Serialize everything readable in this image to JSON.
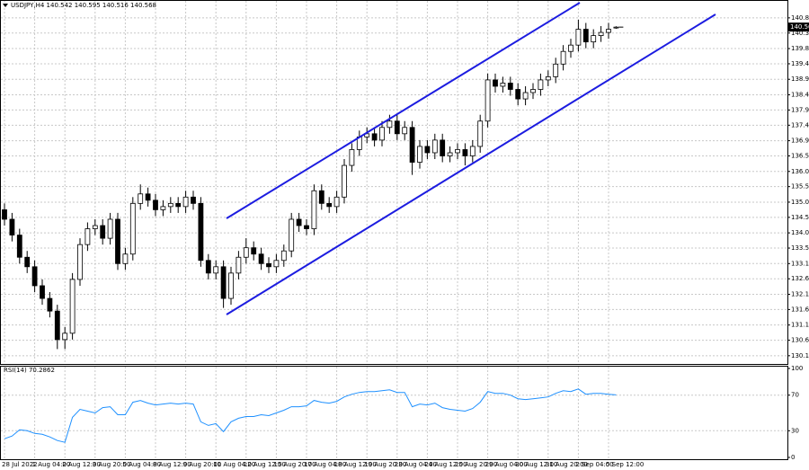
{
  "chart_data": [
    {
      "type": "candlestick",
      "title": "USDJPY,H4  140.542 140.595 140.516 140.568",
      "categories": [
        "28 Jul 2022",
        "1 Aug 04:00",
        "2 Aug 12:00",
        "3 Aug 20:00",
        "5 Aug 04:00",
        "8 Aug 12:00",
        "9 Aug 20:00",
        "11 Aug 04:00",
        "12 Aug 12:00",
        "15 Aug 20:00",
        "17 Aug 04:00",
        "18 Aug 12:00",
        "19 Aug 20:00",
        "23 Aug 04:00",
        "24 Aug 12:00",
        "25 Aug 20:00",
        "29 Aug 04:00",
        "30 Aug 12:00",
        "31 Aug 20:00",
        "2 Sep 04:00",
        "5 Sep 12:00"
      ],
      "open": [
        134.8,
        134.5,
        134.0,
        133.3,
        133.0,
        132.4,
        132.0,
        131.6,
        130.7,
        130.9,
        132.6,
        133.7,
        134.2,
        134.3,
        133.9,
        134.5,
        133.1,
        133.4,
        135.0,
        135.3,
        135.1,
        134.8,
        134.9,
        135.0,
        134.9,
        135.2,
        135.0,
        133.2,
        132.8,
        133.0,
        132.0,
        132.8,
        133.3,
        133.6,
        133.4,
        133.1,
        133.0,
        133.2,
        133.5,
        134.5,
        134.3,
        134.2,
        135.4,
        135.0,
        134.9,
        135.2,
        136.2,
        136.7,
        137.1,
        137.2,
        137.0,
        137.4,
        137.6,
        137.2,
        137.4,
        136.3,
        136.8,
        136.6,
        137.0,
        136.5,
        136.6,
        136.7,
        136.5,
        136.8,
        137.6,
        138.9,
        138.7,
        138.8,
        138.6,
        138.3,
        138.5,
        138.6,
        138.9,
        139.0,
        139.4,
        139.8,
        140.0,
        140.5,
        140.1,
        140.3,
        140.4,
        140.542
      ],
      "high": [
        135.0,
        134.7,
        134.2,
        133.5,
        133.2,
        132.6,
        132.2,
        131.8,
        131.1,
        132.8,
        133.9,
        134.4,
        134.5,
        134.5,
        134.7,
        134.7,
        133.6,
        135.2,
        135.6,
        135.5,
        135.3,
        135.1,
        135.2,
        135.2,
        135.4,
        135.4,
        135.2,
        133.4,
        133.2,
        133.2,
        133.0,
        133.5,
        133.9,
        133.8,
        133.6,
        133.3,
        133.4,
        133.7,
        134.7,
        134.7,
        134.5,
        135.6,
        135.6,
        135.2,
        135.4,
        136.4,
        136.9,
        137.3,
        137.4,
        137.4,
        137.6,
        137.8,
        137.8,
        137.6,
        137.6,
        137.0,
        137.0,
        137.2,
        137.2,
        136.8,
        136.9,
        136.9,
        137.0,
        137.8,
        139.1,
        139.1,
        139.0,
        139.0,
        138.8,
        138.7,
        138.8,
        139.1,
        139.2,
        139.6,
        140.0,
        140.2,
        140.8,
        140.7,
        140.5,
        140.6,
        140.7,
        140.595
      ],
      "low": [
        134.3,
        133.8,
        133.1,
        132.8,
        132.2,
        131.8,
        131.4,
        130.4,
        130.4,
        130.7,
        132.4,
        133.5,
        134.0,
        133.7,
        133.7,
        132.9,
        132.9,
        133.2,
        134.8,
        134.9,
        134.6,
        134.6,
        134.7,
        134.7,
        134.7,
        134.8,
        133.0,
        132.6,
        132.6,
        131.7,
        131.8,
        132.6,
        133.1,
        133.2,
        132.9,
        132.8,
        132.8,
        133.0,
        133.3,
        134.1,
        134.0,
        134.0,
        134.8,
        134.7,
        134.7,
        135.0,
        136.0,
        136.5,
        136.9,
        136.8,
        136.8,
        137.2,
        137.0,
        137.0,
        135.9,
        136.1,
        136.4,
        136.4,
        136.3,
        136.3,
        136.4,
        136.2,
        136.3,
        136.6,
        137.4,
        138.5,
        138.5,
        138.4,
        138.1,
        138.1,
        138.3,
        138.4,
        138.7,
        138.8,
        139.2,
        139.6,
        139.8,
        139.9,
        139.9,
        140.1,
        140.2,
        140.516
      ],
      "close": [
        134.5,
        134.0,
        133.3,
        133.0,
        132.4,
        132.0,
        131.6,
        130.7,
        130.9,
        132.6,
        133.7,
        134.2,
        134.3,
        133.9,
        134.5,
        133.1,
        133.4,
        135.0,
        135.3,
        135.1,
        134.8,
        134.9,
        135.0,
        134.9,
        135.2,
        135.0,
        133.2,
        132.8,
        133.0,
        132.0,
        132.8,
        133.3,
        133.6,
        133.4,
        133.1,
        133.0,
        133.2,
        133.5,
        134.5,
        134.3,
        134.2,
        135.4,
        135.0,
        134.9,
        135.2,
        136.2,
        136.7,
        137.1,
        137.2,
        137.0,
        137.4,
        137.6,
        137.2,
        137.4,
        136.3,
        136.8,
        136.6,
        137.0,
        136.5,
        136.6,
        136.7,
        136.5,
        136.8,
        137.6,
        138.9,
        138.7,
        138.8,
        138.6,
        138.3,
        138.5,
        138.6,
        138.9,
        139.0,
        139.4,
        139.8,
        140.0,
        140.5,
        140.1,
        140.3,
        140.4,
        140.5,
        140.568
      ],
      "ylim": [
        129.93,
        141.14
      ],
      "yticks": [
        {
          "value": 140.86,
          "label": "140.860"
        },
        {
          "value": 140.38,
          "label": "140.380"
        },
        {
          "value": 139.89,
          "label": "139.890"
        },
        {
          "value": 139.41,
          "label": "139.410"
        },
        {
          "value": 138.92,
          "label": "138.920"
        },
        {
          "value": 138.43,
          "label": "138.430"
        },
        {
          "value": 137.95,
          "label": "137.950"
        },
        {
          "value": 137.47,
          "label": "137.470"
        },
        {
          "value": 136.98,
          "label": "136.980"
        },
        {
          "value": 136.5,
          "label": "136.500"
        },
        {
          "value": 136.01,
          "label": "136.010"
        },
        {
          "value": 135.53,
          "label": "135.530"
        },
        {
          "value": 135.04,
          "label": "135.040"
        },
        {
          "value": 134.56,
          "label": "134.560"
        },
        {
          "value": 134.07,
          "label": "134.070"
        },
        {
          "value": 133.59,
          "label": "133.590"
        },
        {
          "value": 133.1,
          "label": "133.100"
        },
        {
          "value": 132.62,
          "label": "132.620"
        },
        {
          "value": 132.13,
          "label": "132.130"
        },
        {
          "value": 131.65,
          "label": "131.650"
        },
        {
          "value": 131.16,
          "label": "131.160"
        },
        {
          "value": 130.68,
          "label": "130.680"
        },
        {
          "value": 130.19,
          "label": "130.190"
        }
      ],
      "grid": true,
      "color": "#000000"
    },
    {
      "type": "line",
      "title": "RSI(14) 70.2862",
      "values": [
        21,
        24,
        31,
        30,
        27,
        26,
        23,
        19,
        17,
        45,
        54,
        52,
        50,
        56,
        57,
        48,
        48,
        62,
        64,
        61,
        59,
        60,
        61,
        60,
        61,
        60,
        40,
        36,
        38,
        29,
        40,
        44,
        46,
        46,
        48,
        47,
        50,
        53,
        57,
        57,
        58,
        64,
        62,
        61,
        63,
        68,
        71,
        73,
        74,
        74,
        75,
        76,
        73,
        73,
        57,
        60,
        59,
        61,
        56,
        54,
        53,
        52,
        55,
        62,
        74,
        72,
        72,
        70,
        66,
        65,
        66,
        67,
        68,
        72,
        75,
        74,
        77,
        71,
        72,
        72,
        71,
        70.2862
      ],
      "color": "#1e90ff",
      "ylim": [
        0,
        100
      ],
      "yticks": [
        0,
        30,
        70,
        100
      ],
      "grid": true
    }
  ]
}
